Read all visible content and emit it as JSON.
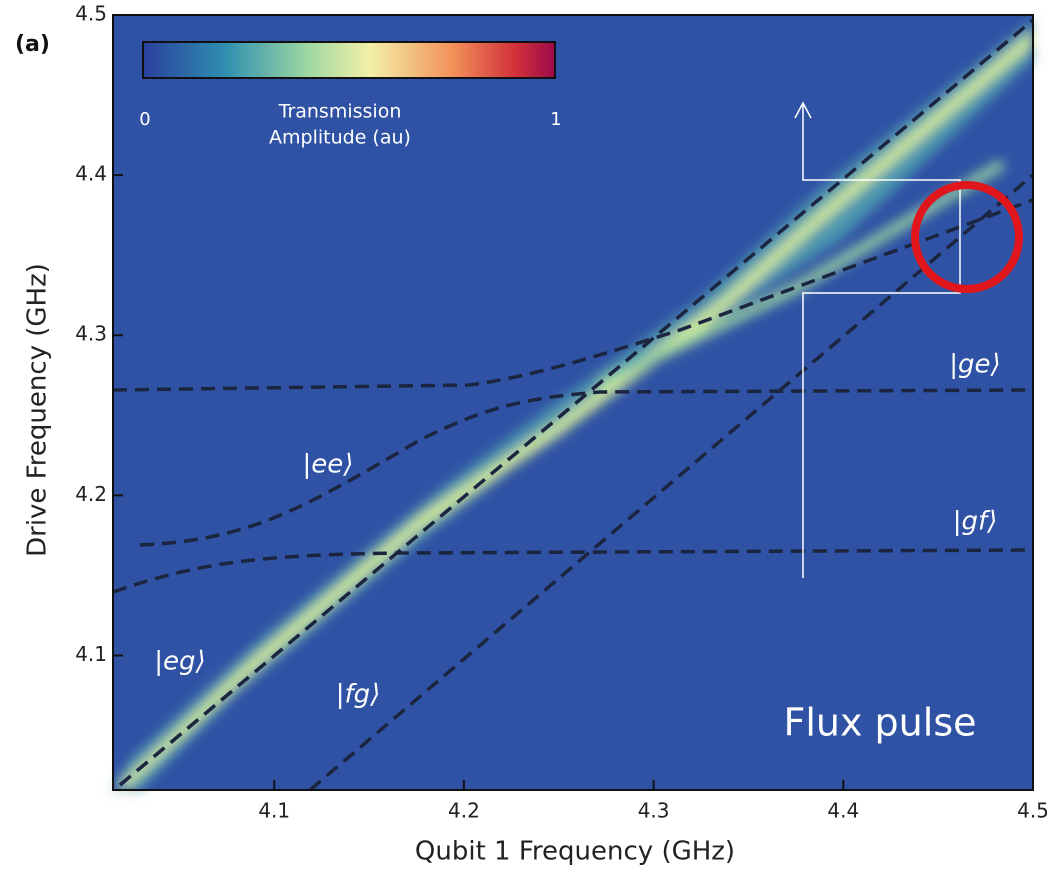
{
  "chart_data": {
    "type": "heatmap",
    "panel_label": "(a)",
    "xlabel": "Qubit 1 Frequency (GHz)",
    "ylabel": "Drive Frequency (GHz)",
    "xlim": [
      4.015,
      4.5
    ],
    "ylim": [
      4.016,
      4.5
    ],
    "xticks": [
      4.1,
      4.2,
      4.3,
      4.4,
      4.5
    ],
    "yticks": [
      4.1,
      4.2,
      4.3,
      4.4,
      4.5
    ],
    "colorbar": {
      "label_lines": [
        "Transmission",
        "Amplitude (au)"
      ],
      "ticks": [
        0,
        1
      ]
    },
    "state_labels": [
      "|eg⟩",
      "|fg⟩",
      "|ee⟩",
      "|ge⟩",
      "|gf⟩"
    ],
    "annotation": "Flux pulse"
  }
}
